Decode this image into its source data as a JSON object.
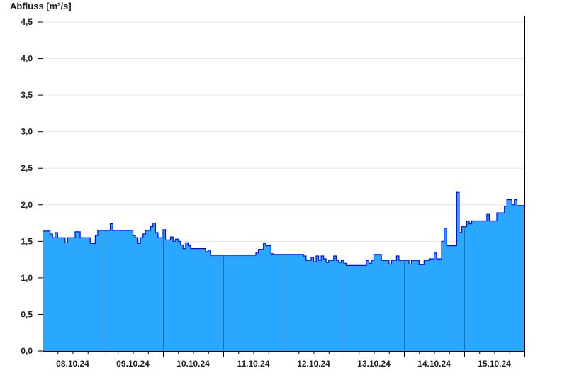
{
  "chart_data": {
    "type": "area",
    "title": "",
    "ylabel": "Abfluss [m³/s]",
    "xlabel": "",
    "ylim": [
      0,
      4.5
    ],
    "yticks": [
      "0,0",
      "0,5",
      "1,0",
      "1,5",
      "2,0",
      "2,5",
      "3,0",
      "3,5",
      "4,0",
      "4,5"
    ],
    "ytick_values": [
      0,
      0.5,
      1,
      1.5,
      2,
      2.5,
      3,
      3.5,
      4,
      4.5
    ],
    "grid": true,
    "colors": {
      "fill": "#2aa8ff",
      "line": "#0000ff",
      "day_separator": "#2b6c9c",
      "grid": "#e6e6e6"
    },
    "xticks": [
      "08.10.24",
      "09.10.24",
      "10.10.24",
      "11.10.24",
      "12.10.24",
      "13.10.24",
      "14.10.24",
      "15.10.24"
    ],
    "x_range": [
      "2024-10-08 00:00",
      "2024-10-16 00:00"
    ],
    "series": [
      {
        "date": "08.10.24",
        "hourly": [
          1.64,
          1.64,
          1.64,
          1.6,
          1.55,
          1.62,
          1.55,
          1.55,
          1.55,
          1.48,
          1.55,
          1.55,
          1.55,
          1.63,
          1.63,
          1.55,
          1.55,
          1.55,
          1.55,
          1.47,
          1.47,
          1.58,
          1.65,
          1.65
        ]
      },
      {
        "date": "09.10.24",
        "hourly": [
          1.65,
          1.65,
          1.65,
          1.74,
          1.65,
          1.65,
          1.65,
          1.65,
          1.65,
          1.65,
          1.65,
          1.65,
          1.58,
          1.55,
          1.47,
          1.55,
          1.6,
          1.65,
          1.65,
          1.7,
          1.75,
          1.62,
          1.55,
          1.55
        ]
      },
      {
        "date": "10.10.24",
        "hourly": [
          1.66,
          1.52,
          1.52,
          1.56,
          1.5,
          1.53,
          1.5,
          1.45,
          1.4,
          1.48,
          1.44,
          1.4,
          1.4,
          1.4,
          1.4,
          1.4,
          1.4,
          1.36,
          1.38,
          1.31,
          1.31,
          1.31,
          1.31,
          1.31
        ]
      },
      {
        "date": "11.10.24",
        "hourly": [
          1.31,
          1.31,
          1.31,
          1.31,
          1.31,
          1.31,
          1.31,
          1.31,
          1.31,
          1.31,
          1.31,
          1.31,
          1.31,
          1.34,
          1.39,
          1.39,
          1.47,
          1.44,
          1.44,
          1.33,
          1.32,
          1.32,
          1.32,
          1.32
        ]
      },
      {
        "date": "12.10.24",
        "hourly": [
          1.32,
          1.32,
          1.32,
          1.32,
          1.32,
          1.32,
          1.32,
          1.32,
          1.3,
          1.24,
          1.24,
          1.28,
          1.22,
          1.3,
          1.24,
          1.3,
          1.26,
          1.21,
          1.24,
          1.24,
          1.3,
          1.24,
          1.21,
          1.24
        ]
      },
      {
        "date": "13.10.24",
        "hourly": [
          1.2,
          1.17,
          1.17,
          1.17,
          1.17,
          1.17,
          1.17,
          1.17,
          1.17,
          1.24,
          1.2,
          1.24,
          1.32,
          1.32,
          1.32,
          1.24,
          1.24,
          1.24,
          1.19,
          1.24,
          1.24,
          1.3,
          1.24,
          1.24
        ]
      },
      {
        "date": "14.10.24",
        "hourly": [
          1.24,
          1.24,
          1.19,
          1.24,
          1.24,
          1.24,
          1.18,
          1.18,
          1.24,
          1.24,
          1.26,
          1.26,
          1.34,
          1.26,
          1.26,
          1.5,
          1.68,
          1.44,
          1.44,
          1.44,
          1.44,
          2.17,
          1.62,
          1.7
        ]
      },
      {
        "date": "15.10.24",
        "hourly": [
          1.7,
          1.78,
          1.74,
          1.78,
          1.78,
          1.78,
          1.78,
          1.78,
          1.78,
          1.87,
          1.78,
          1.78,
          1.78,
          1.89,
          1.89,
          1.89,
          1.98,
          2.07,
          2.07,
          2.0,
          2.07,
          1.99,
          1.99,
          1.99
        ]
      }
    ]
  }
}
